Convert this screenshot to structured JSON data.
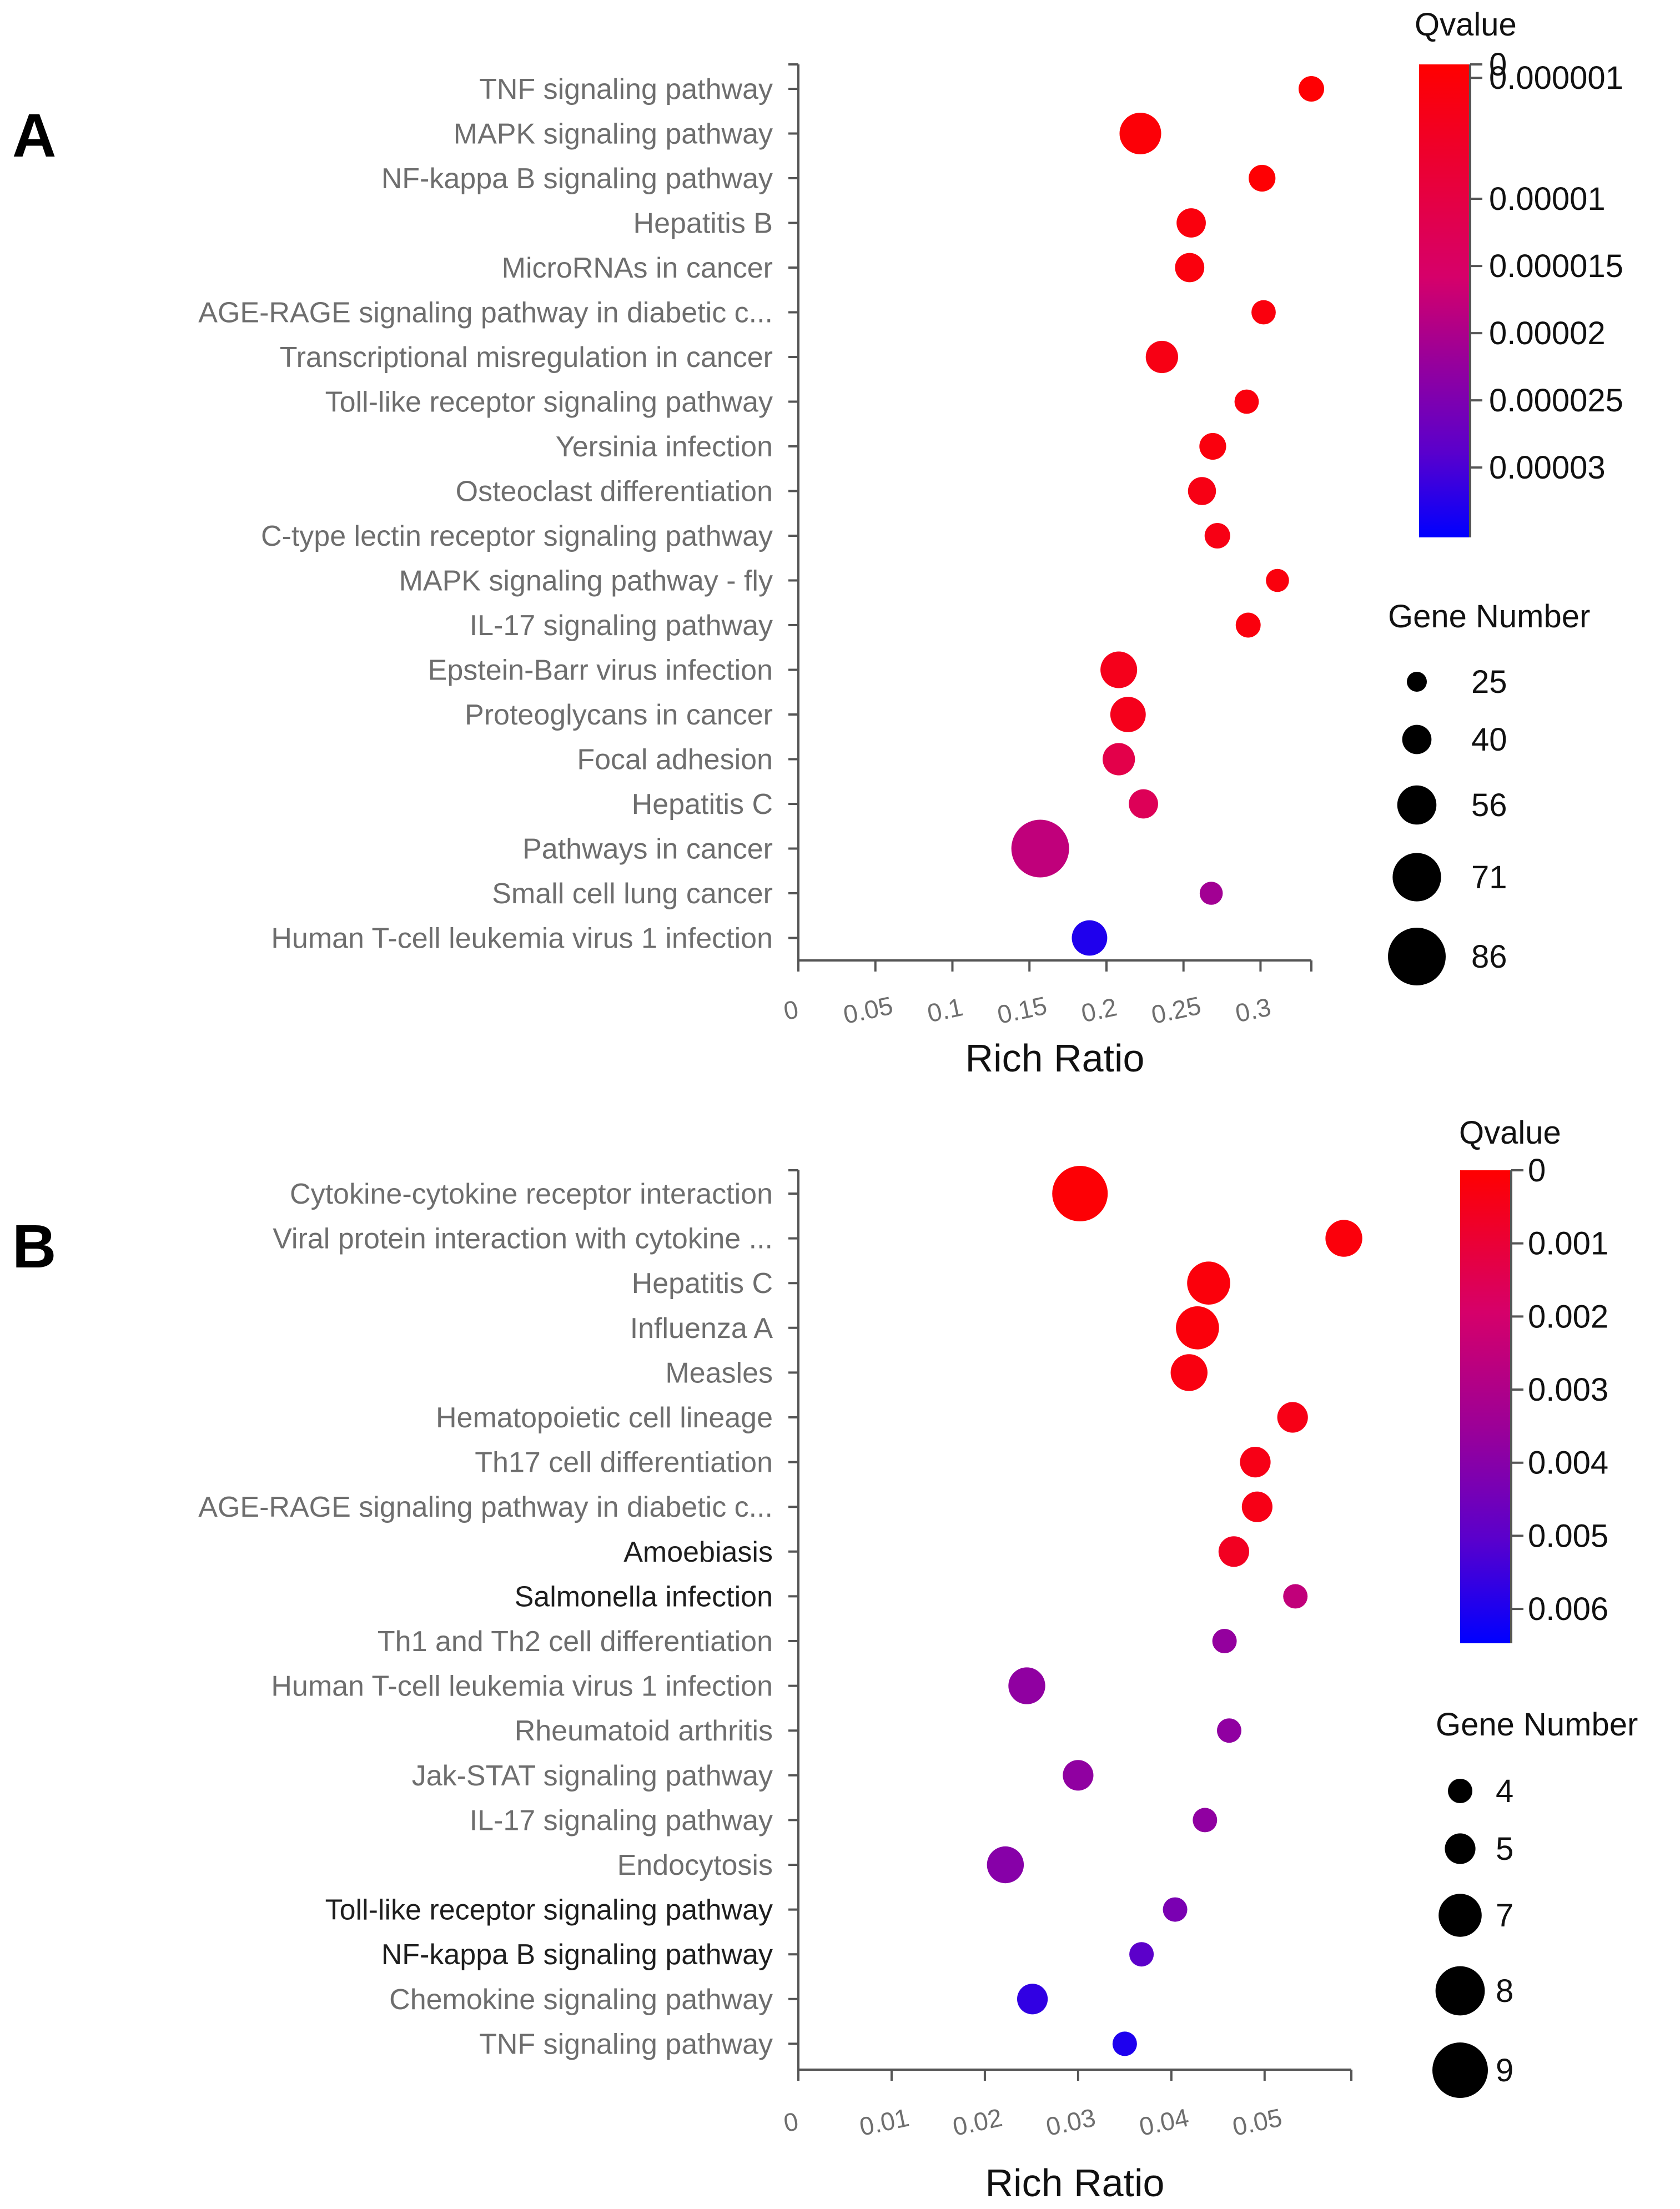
{
  "chart_data": [
    {
      "panel": "A",
      "type": "scatter",
      "xlabel": "Rich Ratio",
      "x_ticks": [
        0,
        0.05,
        0.1,
        0.15,
        0.2,
        0.25,
        0.3
      ],
      "x_tick_labels": [
        "0",
        "0.05",
        "0.1",
        "0.15",
        "0.2",
        "0.25",
        "0.3"
      ],
      "xlim": [
        0,
        0.333
      ],
      "categories": [
        "TNF signaling pathway",
        "MAPK signaling pathway",
        "NF-kappa B signaling pathway",
        "Hepatitis B",
        "MicroRNAs in cancer",
        "AGE-RAGE signaling pathway in diabetic c...",
        "Transcriptional misregulation in cancer",
        "Toll-like receptor signaling pathway",
        "Yersinia infection",
        "Osteoclast differentiation",
        "C-type lectin receptor signaling pathway",
        "MAPK signaling pathway - fly",
        "IL-17 signaling pathway",
        "Epstein-Barr virus infection",
        "Proteoglycans in cancer",
        "Focal adhesion",
        "Hepatitis C",
        "Pathways in cancer",
        "Small cell lung cancer",
        "Human T-cell leukemia virus 1 infection"
      ],
      "dark_labels": [],
      "rich_ratio": [
        0.333,
        0.222,
        0.301,
        0.255,
        0.254,
        0.302,
        0.236,
        0.291,
        0.269,
        0.262,
        0.272,
        0.311,
        0.292,
        0.208,
        0.214,
        0.208,
        0.224,
        0.157,
        0.268,
        0.189
      ],
      "gene_number": [
        34,
        60,
        36,
        40,
        40,
        32,
        45,
        32,
        36,
        38,
        34,
        30,
        33,
        52,
        50,
        45,
        40,
        86,
        30,
        50
      ],
      "qvalue": [
        5e-07,
        1e-06,
        5e-07,
        2e-06,
        2e-06,
        2e-06,
        3e-06,
        2e-06,
        2e-06,
        3e-06,
        3e-06,
        2e-06,
        2e-06,
        4e-06,
        4e-06,
        1.1e-05,
        1.3e-05,
        1.8e-05,
        2.1e-05,
        3.3e-05
      ],
      "color_legend": {
        "title": "Qvalue",
        "min": 0,
        "max": 3.52e-05,
        "ticks": [
          0,
          1e-06,
          1e-05,
          1.5e-05,
          2e-05,
          2.5e-05,
          3e-05
        ],
        "tick_labels": [
          "0",
          "0.000001",
          "0.00001",
          "0.000015",
          "0.00002",
          "0.000025",
          "0.00003"
        ]
      },
      "size_legend": {
        "title": "Gene Number",
        "values": [
          25,
          40,
          56,
          71,
          86
        ],
        "labels": [
          "25",
          "40",
          "56",
          "71",
          "86"
        ]
      }
    },
    {
      "panel": "B",
      "type": "scatter",
      "xlabel": "Rich Ratio",
      "x_ticks": [
        0,
        0.01,
        0.02,
        0.03,
        0.04,
        0.05
      ],
      "x_tick_labels": [
        "0",
        "0.01",
        "0.02",
        "0.03",
        "0.04",
        "0.05"
      ],
      "xlim": [
        0,
        0.0593
      ],
      "categories": [
        "Cytokine-cytokine receptor interaction",
        "Viral protein interaction with cytokine ...",
        "Hepatitis C",
        "Influenza A",
        "Measles",
        "Hematopoietic cell lineage",
        "Th17 cell differentiation",
        "AGE-RAGE signaling pathway in diabetic c...",
        "Amoebiasis",
        "Salmonella infection",
        "Th1 and Th2 cell differentiation",
        "Human T-cell leukemia virus 1 infection",
        "Rheumatoid arthritis",
        "Jak-STAT signaling pathway",
        "IL-17 signaling pathway",
        "Endocytosis",
        "Toll-like receptor signaling pathway",
        "NF-kappa B signaling pathway",
        "Chemokine signaling pathway",
        "TNF signaling pathway"
      ],
      "dark_labels": [
        "Amoebiasis",
        "Salmonella infection",
        "Toll-like receptor signaling pathway",
        "NF-kappa B signaling pathway"
      ],
      "rich_ratio": [
        0.0302,
        0.0585,
        0.044,
        0.0428,
        0.0419,
        0.053,
        0.049,
        0.0492,
        0.0467,
        0.0533,
        0.0457,
        0.0245,
        0.0462,
        0.03,
        0.0436,
        0.0222,
        0.0404,
        0.0368,
        0.0251,
        0.035
      ],
      "gene_number": [
        9,
        6,
        7,
        7,
        6,
        5,
        5,
        5,
        5,
        4,
        4,
        6,
        4,
        5,
        4,
        6,
        4,
        4,
        5,
        4
      ],
      "qvalue": [
        0.0001,
        0.0002,
        0.0002,
        0.0002,
        0.0003,
        0.0004,
        0.0004,
        0.0004,
        0.0006,
        0.0025,
        0.0037,
        0.0038,
        0.0038,
        0.0038,
        0.0038,
        0.004,
        0.0043,
        0.005,
        0.0057,
        0.006
      ],
      "color_legend": {
        "title": "Qvalue",
        "min": 0,
        "max": 0.00647,
        "ticks": [
          0,
          0.001,
          0.002,
          0.003,
          0.004,
          0.005,
          0.006
        ],
        "tick_labels": [
          "0",
          "0.001",
          "0.002",
          "0.003",
          "0.004",
          "0.005",
          "0.006"
        ]
      },
      "size_legend": {
        "title": "Gene Number",
        "values": [
          4,
          5,
          7,
          8,
          9
        ],
        "labels": [
          "4",
          "5",
          "7",
          "8",
          "9"
        ]
      }
    }
  ]
}
